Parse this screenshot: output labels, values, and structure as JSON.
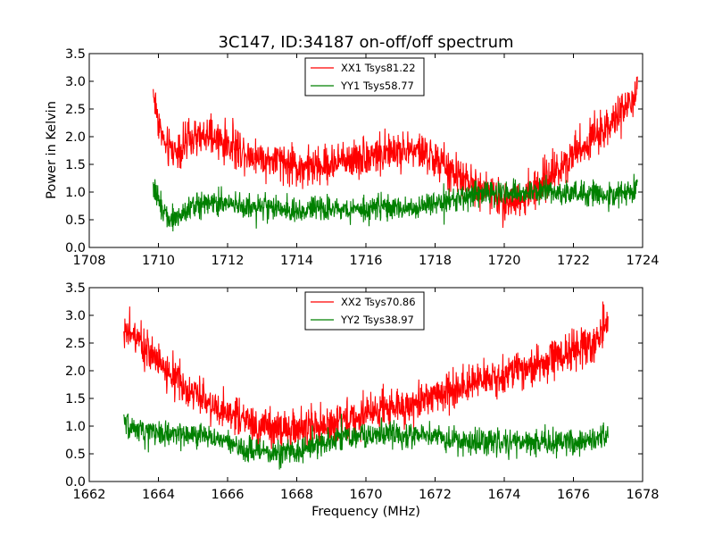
{
  "title": "3C147, ID:34187 on-off/off spectrum",
  "ylabel": "Power in Kelvin",
  "xlabel": "Frequency (MHz)",
  "colors": {
    "xx": "#ff0000",
    "yy": "#008000"
  },
  "chart_data": [
    {
      "type": "line",
      "xlim": [
        1708,
        1724
      ],
      "ylim": [
        0.0,
        3.5
      ],
      "xticks": [
        "1708",
        "1710",
        "1712",
        "1714",
        "1716",
        "1718",
        "1720",
        "1722",
        "1724"
      ],
      "yticks": [
        "0.0",
        "0.5",
        "1.0",
        "1.5",
        "2.0",
        "2.5",
        "3.0",
        "3.5"
      ],
      "legend_position": "top-center",
      "series": [
        {
          "name": "XX1 Tsys81.22",
          "color": "#ff0000",
          "x": [
            1709.85,
            1710.0,
            1710.2,
            1710.5,
            1711.0,
            1711.5,
            1712.0,
            1712.5,
            1713.0,
            1713.5,
            1714.0,
            1714.5,
            1715.0,
            1715.5,
            1716.0,
            1716.5,
            1717.0,
            1717.5,
            1718.0,
            1718.5,
            1719.0,
            1719.5,
            1720.0,
            1720.5,
            1721.0,
            1721.5,
            1722.0,
            1722.5,
            1723.0,
            1723.5,
            1723.85
          ],
          "y": [
            2.8,
            2.3,
            1.8,
            1.75,
            1.95,
            2.0,
            1.85,
            1.75,
            1.6,
            1.55,
            1.45,
            1.45,
            1.5,
            1.6,
            1.65,
            1.7,
            1.75,
            1.75,
            1.6,
            1.35,
            1.15,
            1.0,
            0.85,
            0.85,
            1.1,
            1.4,
            1.7,
            1.95,
            2.2,
            2.5,
            2.75
          ]
        },
        {
          "name": "YY1 Tsys58.77",
          "color": "#008000",
          "x": [
            1709.85,
            1710.0,
            1710.2,
            1710.5,
            1711.0,
            1711.5,
            1712.0,
            1712.5,
            1713.0,
            1713.5,
            1714.0,
            1714.5,
            1715.0,
            1715.5,
            1716.0,
            1716.5,
            1717.0,
            1717.5,
            1718.0,
            1718.5,
            1719.0,
            1719.5,
            1720.0,
            1720.5,
            1721.0,
            1721.5,
            1722.0,
            1722.5,
            1723.0,
            1723.5,
            1723.85
          ],
          "y": [
            1.1,
            0.85,
            0.6,
            0.5,
            0.75,
            0.85,
            0.8,
            0.75,
            0.75,
            0.7,
            0.65,
            0.7,
            0.7,
            0.7,
            0.7,
            0.75,
            0.7,
            0.7,
            0.8,
            0.85,
            0.95,
            1.0,
            1.0,
            1.0,
            1.05,
            1.0,
            0.95,
            0.95,
            0.95,
            1.0,
            1.1
          ]
        }
      ]
    },
    {
      "type": "line",
      "xlim": [
        1662,
        1678
      ],
      "ylim": [
        0.0,
        3.5
      ],
      "xticks": [
        "1662",
        "1664",
        "1666",
        "1668",
        "1670",
        "1672",
        "1674",
        "1676",
        "1678"
      ],
      "yticks": [
        "0.0",
        "0.5",
        "1.0",
        "1.5",
        "2.0",
        "2.5",
        "3.0",
        "3.5"
      ],
      "legend_position": "top-center",
      "series": [
        {
          "name": "XX2 Tsys70.86",
          "color": "#ff0000",
          "x": [
            1663.0,
            1663.5,
            1664.0,
            1664.5,
            1665.0,
            1665.5,
            1666.0,
            1666.5,
            1667.0,
            1667.5,
            1668.0,
            1668.5,
            1669.0,
            1669.5,
            1670.0,
            1670.5,
            1671.0,
            1671.5,
            1672.0,
            1672.5,
            1673.0,
            1673.5,
            1674.0,
            1674.5,
            1675.0,
            1675.5,
            1676.0,
            1676.5,
            1677.0
          ],
          "y": [
            2.8,
            2.5,
            2.2,
            1.85,
            1.6,
            1.4,
            1.25,
            1.1,
            1.0,
            0.95,
            0.95,
            1.0,
            1.05,
            1.1,
            1.2,
            1.3,
            1.35,
            1.45,
            1.55,
            1.65,
            1.75,
            1.85,
            1.95,
            2.05,
            2.1,
            2.2,
            2.35,
            2.5,
            2.8
          ]
        },
        {
          "name": "YY2 Tsys38.97",
          "color": "#008000",
          "x": [
            1663.0,
            1663.5,
            1664.0,
            1664.5,
            1665.0,
            1665.5,
            1666.0,
            1666.5,
            1667.0,
            1667.5,
            1668.0,
            1668.5,
            1669.0,
            1669.5,
            1670.0,
            1670.5,
            1671.0,
            1671.5,
            1672.0,
            1672.5,
            1673.0,
            1673.5,
            1674.0,
            1674.5,
            1675.0,
            1675.5,
            1676.0,
            1676.5,
            1677.0
          ],
          "y": [
            1.0,
            0.95,
            0.9,
            0.85,
            0.85,
            0.8,
            0.7,
            0.6,
            0.55,
            0.5,
            0.55,
            0.65,
            0.75,
            0.8,
            0.85,
            0.85,
            0.85,
            0.85,
            0.8,
            0.75,
            0.7,
            0.7,
            0.7,
            0.7,
            0.72,
            0.72,
            0.72,
            0.75,
            0.9
          ]
        }
      ]
    }
  ]
}
